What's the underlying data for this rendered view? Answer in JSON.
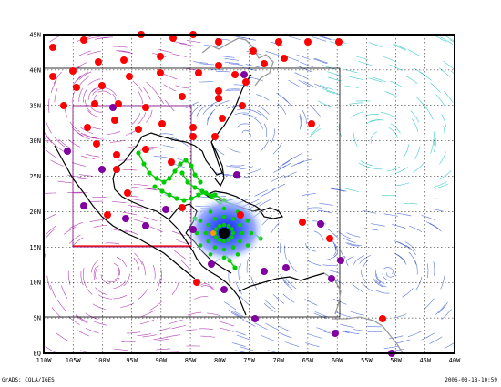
{
  "map": {
    "lat_labels": [
      "45N",
      "40N",
      "35N",
      "30N",
      "25N",
      "20N",
      "15N",
      "10N",
      "5N",
      "EQ"
    ],
    "lon_labels": [
      "110W",
      "105W",
      "100W",
      "95W",
      "90W",
      "85W",
      "80W",
      "75W",
      "70W",
      "65W",
      "60W",
      "55W",
      "50W",
      "45W",
      "40W"
    ],
    "colors": {
      "land": "#000000",
      "land_outer": "#999999",
      "grid": "#000000",
      "box_outer": "#000000",
      "box_inner": "#800080",
      "red_line": "#ff0000",
      "station_red": "#ff0000",
      "station_purple": "#8000a0",
      "track_green": "#00cc00",
      "storm_blue": "#3355ff",
      "storm_eye": "#000000",
      "storm_orange": "#ff9900",
      "stream_blue": "#2244cc",
      "stream_purple": "#990099",
      "stream_cyan": "#00bbbb"
    }
  },
  "footer": {
    "credit": "GrADS: COLA/IGES",
    "timestamp": "2006-03-18-10:59"
  }
}
